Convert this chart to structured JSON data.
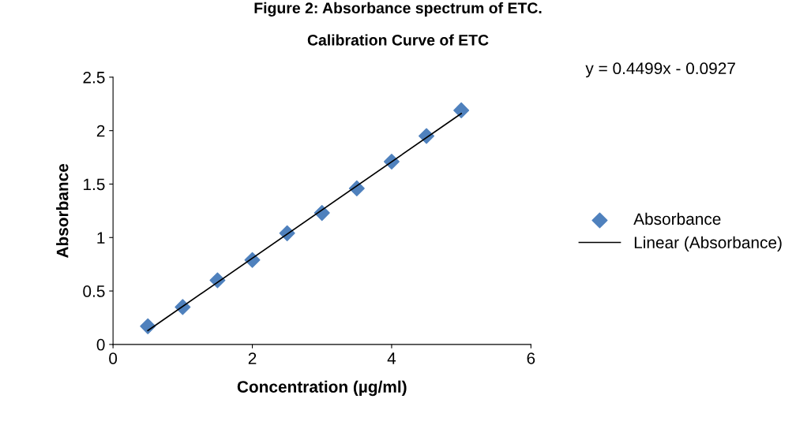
{
  "chart_data": {
    "type": "scatter",
    "title": "Figure 2: Absorbance spectrum of ETC.",
    "subtitle": "Calibration Curve of ETC",
    "xlabel": "Concentration (µg/ml)",
    "ylabel": "Absorbance",
    "x": [
      0.5,
      1,
      1.5,
      2,
      2.5,
      3,
      3.5,
      4,
      4.5,
      5
    ],
    "series": [
      {
        "name": "Absorbance",
        "color": "#4f81bd",
        "marker": "diamond",
        "values": [
          0.17,
          0.35,
          0.6,
          0.79,
          1.04,
          1.23,
          1.46,
          1.71,
          1.95,
          2.19
        ]
      },
      {
        "name": "Linear (Absorbance)",
        "color": "#000000",
        "type": "line",
        "marker": "none",
        "x": [
          0.5,
          5
        ],
        "values": [
          0.13,
          2.16
        ]
      }
    ],
    "annotations": [
      "y = 0.4499x - 0.0927"
    ],
    "xlim": [
      0,
      6
    ],
    "xticks": [
      0,
      2,
      4,
      6
    ],
    "ylim": [
      0,
      2.5
    ],
    "yticks": [
      0,
      0.5,
      1,
      1.5,
      2,
      2.5
    ],
    "grid": false,
    "legend": "right"
  }
}
